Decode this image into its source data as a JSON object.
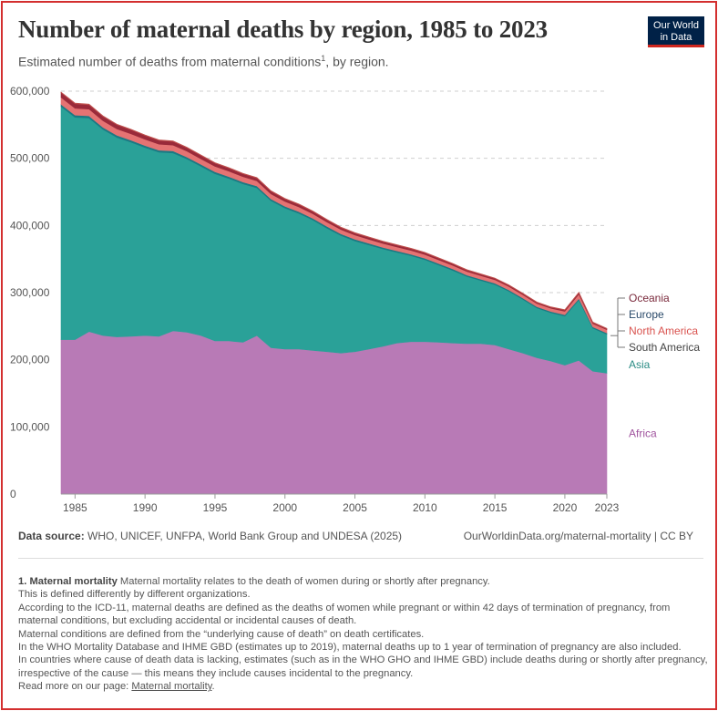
{
  "header": {
    "title": "Number of maternal deaths by region, 1985 to 2023",
    "subtitle": "Estimated number of deaths from maternal conditions",
    "subtitle_footnote": "1",
    "subtitle_tail": ", by region.",
    "logo_line1": "Our World",
    "logo_line2": "in Data"
  },
  "footer": {
    "source_label": "Data source:",
    "source_text": "WHO, UNICEF, UNFPA, World Bank Group and UNDESA (2025)",
    "url_text": "OurWorldinData.org/maternal-mortality | CC BY"
  },
  "notes": {
    "heading": "1. Maternal mortality",
    "line1": "Maternal mortality relates to the death of women during or shortly after pregnancy.",
    "line2": "This is defined differently by different organizations.",
    "line3": "According to the ICD-11, maternal deaths are defined as the deaths of women while pregnant or within 42 days of termination of pregnancy, from maternal conditions, but excluding accidental or incidental causes of death.",
    "line4": "Maternal conditions are defined from the “underlying cause of death” on death certificates.",
    "line5": "In the WHO Mortality Database and IHME GBD (estimates up to 2019), maternal deaths up to 1 year of termination of pregnancy are also included.",
    "line6": "In countries where cause of death data is lacking, estimates (such as in the WHO GHO and IHME GBD) include deaths during or shortly after pregnancy, irrespective of the cause — this means they include causes incidental to the pregnancy.",
    "read_more": "Read more on our page:",
    "link_text": "Maternal mortality",
    "period": "."
  },
  "chart_data": {
    "type": "area",
    "stacked": true,
    "title": "Number of maternal deaths by region, 1985 to 2023",
    "xlabel": "",
    "ylabel": "",
    "xlim": [
      1984,
      2023
    ],
    "ylim": [
      0,
      600000
    ],
    "x_ticks": [
      1985,
      1990,
      1995,
      2000,
      2005,
      2010,
      2015,
      2020,
      2023
    ],
    "x_tick_labels": [
      "1985",
      "1990",
      "1995",
      "2000",
      "2005",
      "2010",
      "2015",
      "2020",
      "2023"
    ],
    "y_ticks": [
      0,
      100000,
      200000,
      300000,
      400000,
      500000,
      600000
    ],
    "y_tick_labels": [
      "0",
      "100,000",
      "200,000",
      "300,000",
      "400,000",
      "500,000",
      "600,000"
    ],
    "grid": true,
    "legend_placement": "right, labels at series ends",
    "x": [
      1984,
      1985,
      1986,
      1987,
      1988,
      1989,
      1990,
      1991,
      1992,
      1993,
      1994,
      1995,
      1996,
      1997,
      1998,
      1999,
      2000,
      2001,
      2002,
      2003,
      2004,
      2005,
      2006,
      2007,
      2008,
      2009,
      2010,
      2011,
      2012,
      2013,
      2014,
      2015,
      2016,
      2017,
      2018,
      2019,
      2020,
      2021,
      2022,
      2023
    ],
    "series": [
      {
        "name": "Africa",
        "color": "#b87ab6",
        "values": [
          230000,
          230000,
          242000,
          236000,
          234000,
          235000,
          236000,
          235000,
          243000,
          241000,
          236000,
          228000,
          228000,
          226000,
          236000,
          218000,
          216000,
          216000,
          214000,
          212000,
          210000,
          212000,
          216000,
          220000,
          225000,
          227000,
          227000,
          226000,
          225000,
          224000,
          224000,
          222000,
          216000,
          210000,
          203000,
          198000,
          192000,
          199000,
          183000,
          180000
        ]
      },
      {
        "name": "Asia",
        "color": "#2aa198",
        "values": [
          347000,
          331000,
          318000,
          307000,
          297000,
          289000,
          280000,
          274000,
          265000,
          258000,
          252000,
          249000,
          242000,
          236000,
          220000,
          219000,
          210000,
          202000,
          194000,
          184000,
          175000,
          165000,
          155000,
          145000,
          135000,
          128000,
          122000,
          115000,
          108000,
          100000,
          94000,
          90000,
          86000,
          80000,
          74000,
          72000,
          73000,
          90000,
          64000,
          58000
        ]
      },
      {
        "name": "South America",
        "color": "#1a7a84",
        "values": [
          3300,
          3300,
          3200,
          3100,
          3100,
          3000,
          3000,
          3000,
          2900,
          2900,
          2800,
          2800,
          2700,
          2700,
          2700,
          2600,
          2600,
          2500,
          2500,
          2500,
          2400,
          2400,
          2300,
          2300,
          2200,
          2200,
          2200,
          2100,
          2100,
          2000,
          2000,
          2000,
          2000,
          1900,
          1900,
          1900,
          2000,
          2200,
          1900,
          1900
        ]
      },
      {
        "name": "North America",
        "color": "#e57373",
        "values": [
          10500,
          10200,
          10000,
          9800,
          9600,
          9400,
          9200,
          9000,
          8800,
          8600,
          8400,
          8200,
          8000,
          7800,
          7600,
          7400,
          7200,
          7000,
          6800,
          6600,
          6400,
          6200,
          6000,
          5900,
          5800,
          5700,
          5600,
          5500,
          5400,
          5300,
          5200,
          5100,
          5000,
          4900,
          4800,
          4700,
          5200,
          6500,
          5000,
          4800
        ]
      },
      {
        "name": "Europe",
        "color": "#9a2a3a",
        "values": [
          7000,
          6800,
          6600,
          6400,
          6200,
          6000,
          5800,
          5600,
          5400,
          5200,
          5000,
          4800,
          4600,
          4400,
          4200,
          4000,
          3800,
          3600,
          3400,
          3200,
          3000,
          2900,
          2800,
          2700,
          2600,
          2500,
          2400,
          2300,
          2200,
          2100,
          2000,
          1900,
          1800,
          1700,
          1600,
          1500,
          1700,
          2000,
          1500,
          1400
        ]
      },
      {
        "name": "Oceania",
        "color": "#c0504d",
        "values": [
          900,
          900,
          900,
          900,
          880,
          880,
          860,
          860,
          850,
          850,
          840,
          840,
          830,
          830,
          820,
          820,
          810,
          810,
          800,
          800,
          790,
          790,
          780,
          780,
          770,
          770,
          760,
          760,
          750,
          750,
          740,
          740,
          730,
          730,
          720,
          720,
          740,
          780,
          710,
          700
        ]
      }
    ],
    "legend_labels": [
      {
        "name": "Oceania",
        "color": "#7a2a3c"
      },
      {
        "name": "Europe",
        "color": "#2a4a6a"
      },
      {
        "name": "North America",
        "color": "#d9534f"
      },
      {
        "name": "South America",
        "color": "#444444"
      },
      {
        "name": "Asia",
        "color": "#2a8c84"
      },
      {
        "name": "Africa",
        "color": "#a0549e"
      }
    ]
  }
}
